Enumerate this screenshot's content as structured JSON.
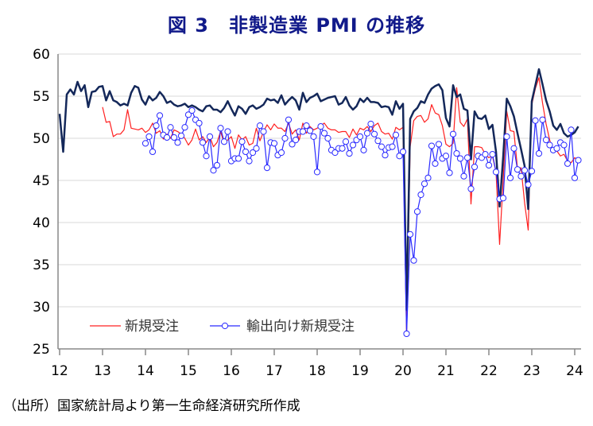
{
  "chart_data": {
    "type": "line",
    "title": "図 3　非製造業 PMI の推移",
    "source": "（出所）国家統計局より第一生命経済研究所作成",
    "xlabel": "",
    "ylabel": "",
    "ylim": [
      25,
      60
    ],
    "yticks": [
      "25",
      "30",
      "35",
      "40",
      "45",
      "50",
      "55",
      "60"
    ],
    "xticks": [
      "12",
      "13",
      "14",
      "15",
      "16",
      "17",
      "18",
      "19",
      "20",
      "21",
      "22",
      "23",
      "24"
    ],
    "x_unit": "month",
    "grid": "horizontal",
    "legend_position": "bottom-left",
    "series": [
      {
        "start": "2012-01",
        "color": "#14285a",
        "marker": "none",
        "values": [
          52.9,
          48.4,
          55.2,
          55.8,
          55.2,
          56.7,
          55.6,
          56.3,
          53.7,
          55.5,
          55.6,
          56.1,
          56.2,
          54.5,
          55.6,
          54.5,
          54.3,
          53.9,
          54.1,
          53.9,
          55.4,
          56.2,
          56.0,
          54.6,
          54.0,
          55.0,
          54.5,
          54.8,
          55.5,
          55.0,
          54.2,
          54.4,
          54.0,
          53.8,
          53.9,
          54.1,
          53.7,
          53.9,
          53.7,
          53.4,
          53.2,
          53.8,
          53.9,
          53.4,
          53.4,
          53.1,
          53.6,
          54.4,
          53.5,
          52.7,
          53.8,
          53.5,
          52.9,
          53.7,
          53.9,
          53.5,
          53.7,
          54.0,
          54.7,
          54.5,
          54.6,
          54.2,
          55.1,
          54.0,
          54.5,
          54.9,
          54.5,
          53.4,
          55.4,
          54.3,
          54.8,
          55.0,
          55.3,
          54.4,
          54.6,
          54.8,
          54.9,
          55.0,
          54.0,
          54.2,
          54.9,
          53.9,
          53.4,
          53.8,
          54.7,
          54.3,
          54.8,
          54.3,
          54.3,
          54.2,
          53.7,
          53.8,
          53.7,
          52.8,
          54.4,
          53.5,
          54.1,
          29.6,
          52.3,
          53.2,
          53.6,
          54.4,
          54.2,
          55.2,
          55.9,
          56.2,
          56.4,
          55.7,
          52.4,
          51.4,
          56.3,
          54.9,
          55.2,
          53.5,
          53.3,
          47.5,
          53.2,
          52.4,
          52.3,
          52.7,
          51.1,
          51.6,
          48.4,
          41.9,
          47.8,
          54.7,
          53.8,
          52.6,
          50.6,
          48.7,
          46.7,
          41.6,
          54.4,
          56.3,
          58.2,
          56.4,
          54.5,
          53.2,
          51.5,
          51.0,
          51.7,
          50.6,
          50.2,
          50.4,
          50.7,
          51.4
        ]
      },
      {
        "name": "新規受注",
        "start": "2013-01",
        "color": "#ff2020",
        "marker": "none",
        "values": [
          53.7,
          51.9,
          52.0,
          50.2,
          50.5,
          50.5,
          51.0,
          53.4,
          51.2,
          51.1,
          51.0,
          51.2,
          50.7,
          51.0,
          51.8,
          50.6,
          50.9,
          49.9,
          50.5,
          50.0,
          51.0,
          50.8,
          50.5,
          50.0,
          49.2,
          49.8,
          51.1,
          49.8,
          50.2,
          49.5,
          50.2,
          49.0,
          49.5,
          50.8,
          49.4,
          49.8,
          50.2,
          48.8,
          50.4,
          49.8,
          50.2,
          49.2,
          49.4,
          51.2,
          49.7,
          50.8,
          51.6,
          51.0,
          51.7,
          51.2,
          51.2,
          50.8,
          51.8,
          50.5,
          51.0,
          49.8,
          51.8,
          50.6,
          51.4,
          51.0,
          51.2,
          51.5,
          51.8,
          51.2,
          51.0,
          51.0,
          50.7,
          50.8,
          50.8,
          50.1,
          51.1,
          50.4,
          51.2,
          51.0,
          51.4,
          50.8,
          51.5,
          51.8,
          50.8,
          50.5,
          50.6,
          49.9,
          51.3,
          51.0,
          51.3,
          26.5,
          49.0,
          52.1,
          52.6,
          52.7,
          51.9,
          52.3,
          54.0,
          53.0,
          52.8,
          51.5,
          49.3,
          49.0,
          49.4,
          56.0,
          51.9,
          51.4,
          52.3,
          42.2,
          49.0,
          49.0,
          48.9,
          48.1,
          47.7,
          47.9,
          46.0,
          37.4,
          45.0,
          53.2,
          50.9,
          50.8,
          46.4,
          46.5,
          42.3,
          39.1,
          54.0,
          55.9,
          57.2,
          54.2,
          51.7,
          49.8,
          48.4,
          48.5,
          47.9,
          48.1,
          47.3,
          47.1,
          47.7,
          47.4
        ]
      },
      {
        "name": "輸出向け新規受注",
        "start": "2014-01",
        "color": "#2a2aff",
        "marker": "circle",
        "values": [
          49.4,
          50.2,
          48.4,
          51.5,
          52.7,
          50.4,
          50.1,
          51.3,
          50.1,
          49.5,
          50.3,
          51.3,
          52.8,
          53.3,
          52.2,
          51.8,
          49.5,
          47.9,
          50.2,
          46.2,
          46.8,
          51.2,
          49.6,
          50.8,
          47.3,
          47.6,
          47.6,
          49.6,
          48.4,
          47.3,
          48.3,
          48.8,
          51.5,
          50.8,
          46.5,
          49.5,
          49.4,
          48.0,
          48.3,
          50.0,
          52.2,
          49.3,
          49.8,
          50.8,
          50.8,
          51.5,
          50.9,
          50.2,
          46.0,
          51.4,
          50.6,
          50.0,
          48.6,
          48.3,
          48.8,
          48.8,
          49.6,
          48.2,
          49.2,
          49.8,
          50.2,
          48.6,
          50.6,
          51.7,
          50.5,
          49.7,
          49.0,
          48.0,
          48.9,
          49.0,
          50.4,
          47.9,
          48.4,
          26.8,
          38.6,
          35.5,
          41.3,
          43.3,
          44.6,
          45.3,
          49.1,
          47.0,
          49.3,
          47.6,
          47.9,
          45.9,
          50.5,
          48.2,
          47.6,
          45.5,
          47.7,
          44.0,
          46.6,
          47.9,
          47.7,
          48.1,
          46.8,
          48.1,
          46.0,
          42.8,
          42.9,
          50.2,
          45.3,
          48.8,
          46.3,
          45.5,
          46.2,
          44.5,
          46.1,
          52.1,
          48.2,
          52.2,
          49.8,
          49.2,
          48.6,
          48.8,
          49.5,
          49.2,
          47.0,
          51.0,
          45.3,
          47.4
        ]
      }
    ]
  }
}
